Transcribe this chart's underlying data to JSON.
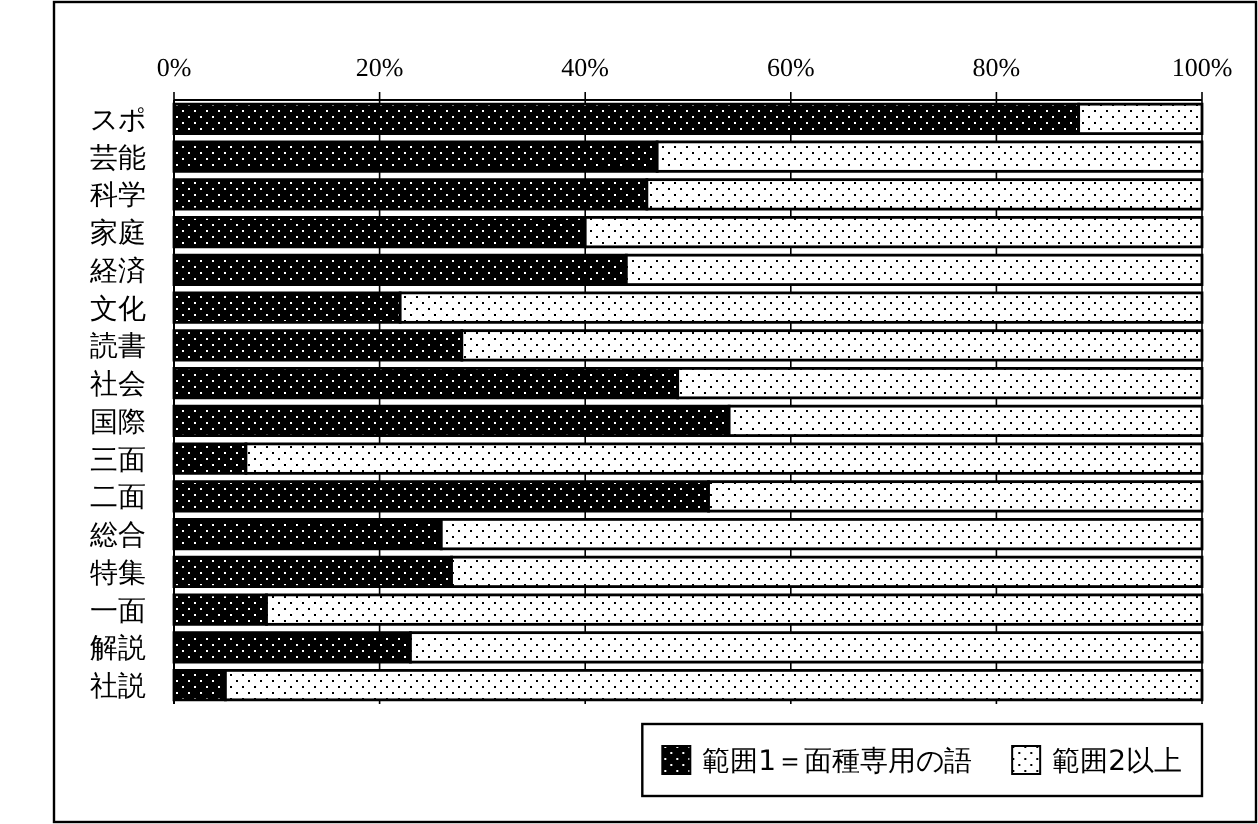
{
  "chart_data": {
    "type": "bar",
    "orientation": "horizontal",
    "stacked": true,
    "categories": [
      "スポ",
      "芸能",
      "科学",
      "家庭",
      "経済",
      "文化",
      "読書",
      "社会",
      "国際",
      "三面",
      "二面",
      "総合",
      "特集",
      "一面",
      "解説",
      "社説"
    ],
    "series": [
      {
        "name": "範囲1＝面種専用の語",
        "color": "#000000",
        "values": [
          88,
          47,
          46,
          40,
          44,
          22,
          28,
          49,
          54,
          7,
          52,
          26,
          27,
          9,
          23,
          5
        ]
      },
      {
        "name": "範囲2以上",
        "color": "#ffffff",
        "values": [
          12,
          53,
          54,
          60,
          56,
          78,
          72,
          51,
          46,
          93,
          48,
          74,
          73,
          91,
          77,
          95
        ]
      }
    ],
    "xlim": [
      0,
      100
    ],
    "xticks": [
      {
        "value": 0,
        "label": "0%"
      },
      {
        "value": 20,
        "label": "20%"
      },
      {
        "value": 40,
        "label": "40%"
      },
      {
        "value": 60,
        "label": "60%"
      },
      {
        "value": 80,
        "label": "80%"
      },
      {
        "value": 100,
        "label": "100%"
      }
    ],
    "grid": "x",
    "legend": "bottom"
  }
}
